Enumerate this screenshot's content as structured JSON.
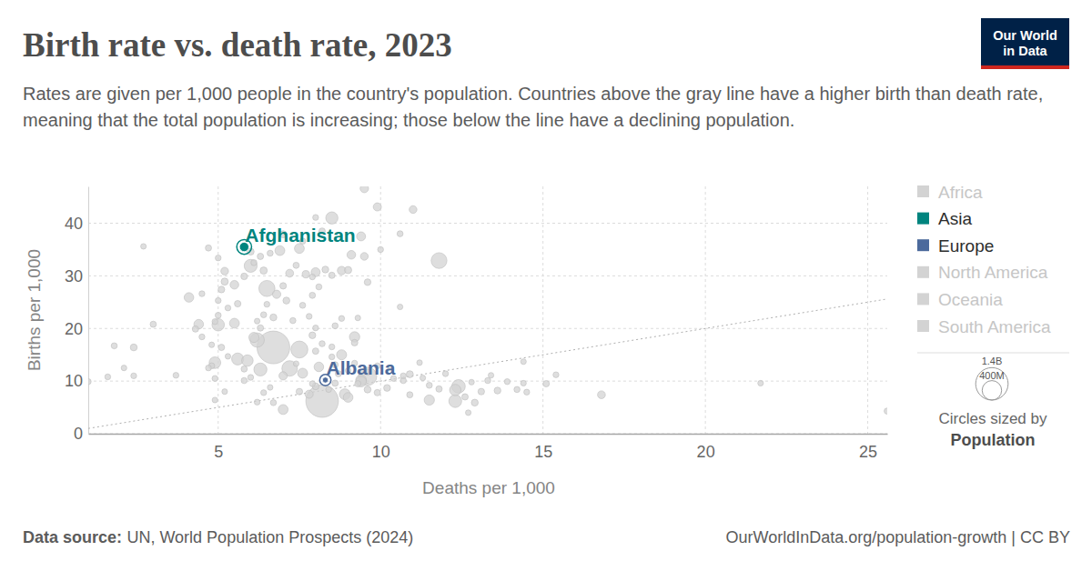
{
  "chart_data": {
    "type": "scatter",
    "title": "Birth rate vs. death rate, 2023",
    "subtitle": "Rates are given per 1,000 people in the country's population. Countries above the gray line have a higher birth than death rate, meaning that the total population is increasing; those below the line have a declining population.",
    "logo": [
      "Our World",
      "in Data"
    ],
    "x_label": "Deaths per 1,000",
    "y_label": "Births per 1,000",
    "xlim": [
      1,
      25.6
    ],
    "ylim": [
      0,
      47
    ],
    "xticks": [
      5,
      10,
      15,
      20,
      25
    ],
    "yticks": [
      0,
      10,
      20,
      30,
      40
    ],
    "grid": true,
    "legend": "right",
    "series": [
      {
        "name": "Africa",
        "color": "#d3d3d3"
      },
      {
        "name": "Asia",
        "color": "#00847e",
        "x": [
          5.8
        ],
        "values": [
          35.5
        ],
        "population": [
          41.5
        ],
        "labels": [
          "Afghanistan"
        ]
      },
      {
        "name": "Europe",
        "color": "#4c6a9c",
        "x": [
          8.3
        ],
        "values": [
          10.2
        ],
        "population": [
          2.8
        ],
        "labels": [
          "Albania"
        ]
      },
      {
        "name": "North America",
        "color": "#d3d3d3"
      },
      {
        "name": "Oceania",
        "color": "#d3d3d3"
      },
      {
        "name": "South America",
        "color": "#d3d3d3"
      }
    ],
    "other_points": {
      "color": "#d3d3d3",
      "x": [
        1.0,
        1.6,
        1.8,
        2.1,
        2.4,
        2.4,
        2.7,
        3.0,
        3.7,
        4.1,
        4.5,
        4.7,
        4.8,
        4.7,
        4.9,
        4.9,
        4.4,
        5.0,
        5.1,
        5.0,
        5.2,
        5.1,
        5.0,
        5.5,
        6.0,
        6.5,
        6.2,
        6.7,
        7.5,
        8.2,
        8.5,
        11.8,
        6.3,
        12.3,
        9.6,
        9.2,
        7.2,
        7.5,
        5.2,
        5.5,
        5.8,
        6.1,
        6.0,
        6.3,
        6.6,
        6.9,
        7.2,
        7.4,
        7.7,
        7.9,
        8.0,
        8.3,
        8.5,
        8.8,
        9.0,
        9.5,
        9.6,
        9.5,
        9.9,
        11.0,
        10.6,
        8.2,
        8.0,
        7.6,
        7.0,
        9.4,
        9.1,
        10.0,
        6.4,
        6.5,
        6.8,
        7.0,
        7.1,
        7.6,
        7.9,
        8.1,
        7.8,
        8.0,
        7.3,
        6.7,
        6.4,
        6.2,
        6.3,
        5.6,
        5.3,
        5.0,
        4.9,
        4.3,
        4.5,
        4.8,
        5.3,
        5.6,
        5.9,
        6.1,
        5.8,
        6.0,
        6.4,
        7.0,
        6.7,
        7.5,
        7.8,
        7.9,
        8.1,
        7.6,
        7.4,
        8.5,
        8.6,
        8.8,
        8.9,
        9.0,
        9.3,
        9.4,
        9.4,
        9.6,
        9.9,
        10.2,
        10.4,
        10.7,
        10.9,
        10.9,
        11.3,
        11.5,
        11.5,
        11.8,
        12.3,
        12.4,
        12.0,
        12.6,
        12.8,
        12.7,
        12.9,
        13.1,
        13.3,
        13.4,
        13.6,
        13.9,
        14.2,
        14.4,
        14.5,
        14.4,
        15.1,
        15.4,
        16.8,
        21.7,
        25.6,
        8.0,
        8.2,
        7.9,
        8.5,
        9.2,
        9.2,
        10.3,
        10.7,
        11.2,
        8.6,
        8.8,
        9.3,
        10.6,
        4.9,
        5.2,
        5.8,
        6.2,
        6.6,
        7.0,
        8.0,
        8.4,
        8.7,
        8.6,
        9.0,
        9.6,
        9.9
      ],
      "values": [
        9.9,
        10.8,
        16.7,
        12.5,
        16.4,
        11.0,
        35.6,
        20.8,
        11.1,
        25.9,
        26.6,
        35.3,
        12.9,
        12.5,
        6.4,
        13.5,
        20.8,
        33.4,
        27.4,
        25.3,
        30.9,
        16.4,
        20.7,
        21.0,
        31.9,
        27.6,
        17.8,
        16.4,
        16.0,
        6.2,
        41.0,
        32.9,
        12.2,
        6.2,
        10.9,
        18.4,
        12.4,
        35.2,
        28.9,
        28.3,
        29.9,
        32.5,
        34.6,
        33.7,
        34.3,
        34.8,
        30.5,
        32.0,
        30.3,
        29.8,
        30.7,
        31.2,
        30.1,
        31.0,
        31.1,
        33.7,
        28.8,
        46.6,
        43.1,
        42.6,
        38.0,
        38.5,
        41.1,
        36.6,
        37.9,
        37.5,
        34.0,
        35.0,
        31.0,
        24.6,
        26.5,
        28.1,
        25.3,
        24.4,
        26.3,
        27.9,
        22.3,
        20.1,
        21.5,
        22.1,
        22.6,
        21.4,
        20.1,
        24.7,
        23.9,
        22.5,
        21.3,
        19.9,
        18.4,
        16.9,
        14.7,
        14.2,
        13.9,
        18.3,
        12.3,
        10.7,
        7.8,
        4.6,
        5.9,
        8.0,
        7.5,
        9.5,
        12.7,
        11.5,
        13.3,
        14.6,
        13.1,
        15.0,
        7.5,
        6.9,
        9.5,
        10.2,
        9.9,
        8.4,
        7.8,
        8.7,
        10.5,
        10.1,
        7.4,
        11.3,
        10.6,
        6.4,
        9.2,
        8.5,
        8.3,
        9.0,
        11.4,
        7.0,
        9.8,
        4.0,
        5.9,
        8.0,
        10.1,
        11.1,
        8.2,
        9.9,
        8.4,
        9.6,
        7.9,
        13.7,
        9.5,
        11.2,
        7.4,
        9.6,
        4.3,
        15.7,
        17.1,
        18.7,
        16.5,
        17.3,
        13.4,
        12.5,
        11.0,
        13.5,
        20.5,
        21.9,
        22.0,
        24.1,
        10.5,
        8.0,
        10.1,
        6.0,
        8.8,
        11.0,
        9.0,
        8.4,
        11.4,
        9.6,
        12.0,
        11.7,
        12.9
      ],
      "population": [
        3,
        3,
        4,
        2,
        10,
        3,
        2,
        5,
        3,
        45,
        3,
        5,
        4,
        3,
        2,
        90,
        46,
        3,
        8,
        3,
        17,
        6,
        110,
        50,
        126,
        240,
        171,
        1430,
        278,
        1410,
        105,
        227,
        130,
        124,
        340,
        61,
        216,
        50,
        12,
        30,
        8,
        4,
        10,
        6,
        4,
        50,
        20,
        5,
        15,
        3,
        35,
        9,
        6,
        28,
        13,
        18,
        8,
        27,
        23,
        18,
        4,
        6,
        3,
        5,
        12,
        35,
        30,
        3,
        13,
        3,
        25,
        7,
        10,
        4,
        5,
        4,
        3,
        3,
        4,
        10,
        4,
        2,
        6,
        7,
        3,
        4,
        3,
        6,
        3,
        2,
        2,
        100,
        86,
        55,
        5,
        3,
        3,
        51,
        4,
        7,
        23,
        3,
        45,
        52,
        2,
        3,
        5,
        54,
        72,
        48,
        5,
        68,
        66,
        10,
        6,
        9,
        3,
        4,
        5,
        11,
        2,
        59,
        4,
        6,
        84,
        144,
        3,
        6,
        2,
        2,
        10,
        7,
        4,
        2,
        9,
        3,
        4,
        2,
        3,
        2,
        6,
        3,
        19,
        2,
        5,
        6,
        4,
        9,
        3,
        7,
        3,
        2,
        3,
        2,
        4,
        3,
        2,
        2,
        3,
        2,
        4,
        3,
        2,
        26,
        10,
        3,
        5,
        6,
        2,
        4,
        3
      ]
    },
    "size_legend": {
      "values": [
        1400,
        400
      ],
      "labels": [
        "1.4B",
        "400M"
      ],
      "title": "Circles sized by",
      "variable": "Population"
    },
    "source_label": "Data source:",
    "source": "UN, World Population Prospects (2024)",
    "url": "OurWorldInData.org/population-growth | CC BY"
  }
}
